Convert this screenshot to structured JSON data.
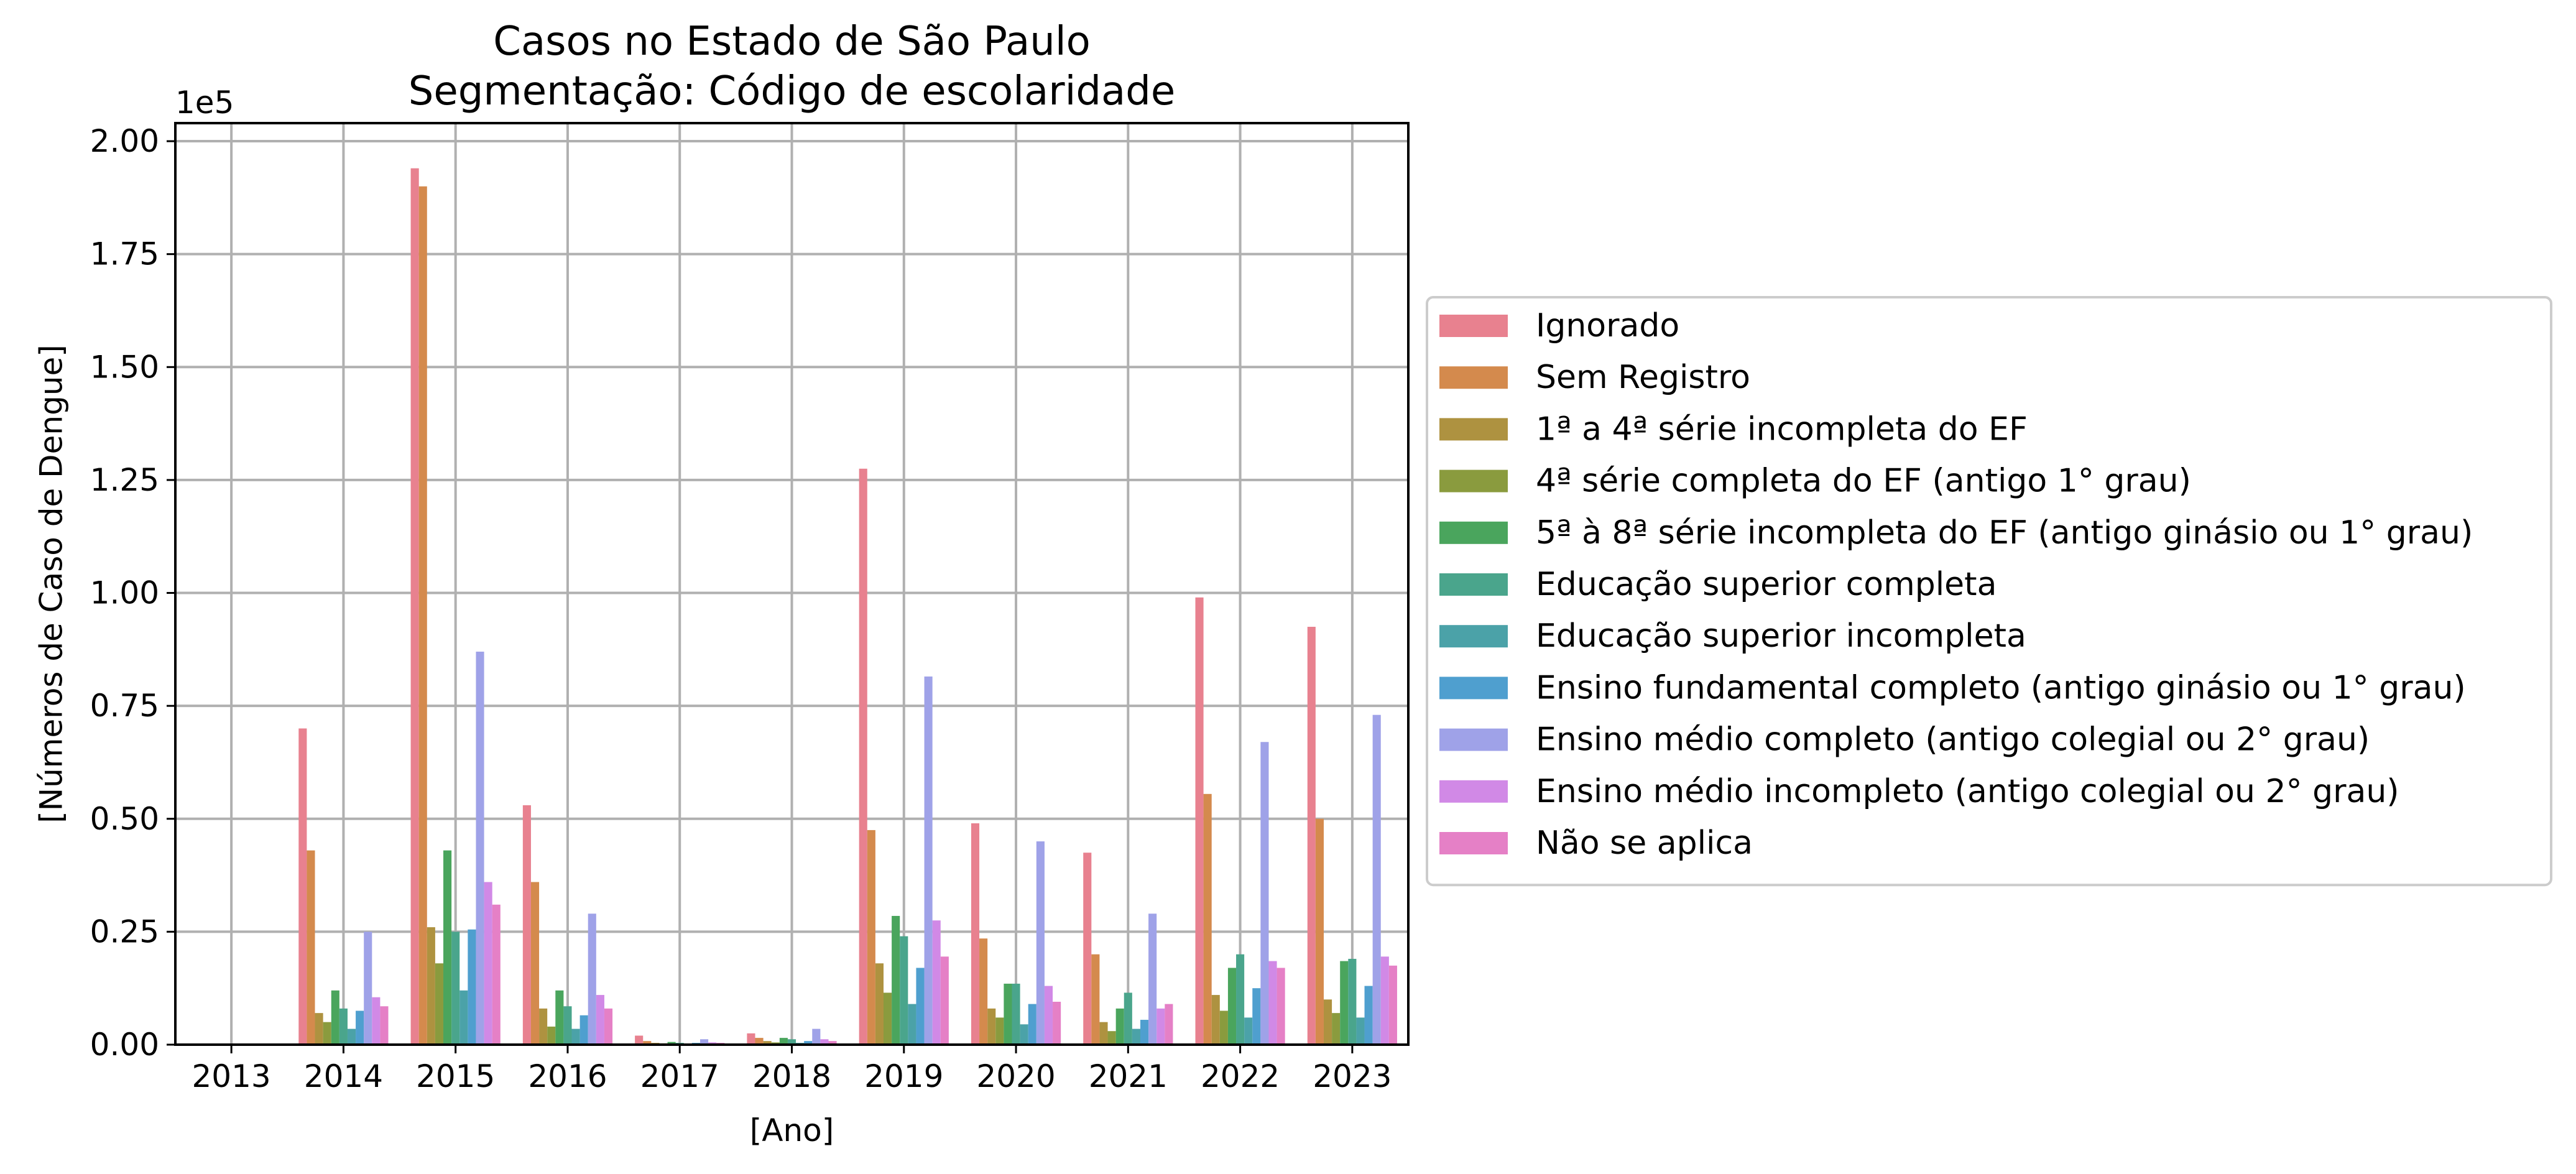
{
  "chart_data": {
    "type": "bar",
    "title": [
      "Casos no Estado de São Paulo",
      "Segmentação: Código de escolaridade"
    ],
    "xlabel": "[Ano]",
    "ylabel": "[Números de Caso de Dengue]",
    "y_offset_label": "1e5",
    "y_scale_factor": 100000,
    "ylim": [
      0,
      2.04
    ],
    "y_ticks": [
      "0.00",
      "0.25",
      "0.50",
      "0.75",
      "1.00",
      "1.25",
      "1.50",
      "1.75",
      "2.00"
    ],
    "grid": true,
    "legend_position": "right",
    "categories": [
      "2013",
      "2014",
      "2015",
      "2016",
      "2017",
      "2018",
      "2019",
      "2020",
      "2021",
      "2022",
      "2023"
    ],
    "series": [
      {
        "name": "Ignorado",
        "color": "#e8818f",
        "values": [
          0,
          0.7,
          1.94,
          0.53,
          0.02,
          0.025,
          1.275,
          0.49,
          0.425,
          0.99,
          0.925
        ]
      },
      {
        "name": "Sem Registro",
        "color": "#d48a4d",
        "values": [
          0,
          0.43,
          1.9,
          0.36,
          0.008,
          0.015,
          0.475,
          0.235,
          0.2,
          0.555,
          0.5
        ]
      },
      {
        "name": "1ª a 4ª série incompleta do EF",
        "color": "#ae9240",
        "values": [
          0,
          0.07,
          0.26,
          0.08,
          0.004,
          0.008,
          0.18,
          0.08,
          0.05,
          0.11,
          0.1
        ]
      },
      {
        "name": "4ª série completa do EF (antigo 1° grau)",
        "color": "#8a9b3e",
        "values": [
          0,
          0.05,
          0.18,
          0.04,
          0.003,
          0.005,
          0.115,
          0.06,
          0.03,
          0.075,
          0.07
        ]
      },
      {
        "name": "5ª à 8ª série incompleta do EF (antigo ginásio ou 1° grau)",
        "color": "#4aa55d",
        "values": [
          0,
          0.12,
          0.43,
          0.12,
          0.006,
          0.015,
          0.285,
          0.135,
          0.08,
          0.17,
          0.185
        ]
      },
      {
        "name": "Educação superior completa",
        "color": "#4aa58c",
        "values": [
          0,
          0.08,
          0.25,
          0.085,
          0.004,
          0.012,
          0.24,
          0.135,
          0.115,
          0.2,
          0.19
        ]
      },
      {
        "name": "Educação superior incompleta",
        "color": "#4ba2a8",
        "values": [
          0,
          0.035,
          0.12,
          0.035,
          0.002,
          0.004,
          0.09,
          0.045,
          0.035,
          0.06,
          0.06
        ]
      },
      {
        "name": "Ensino fundamental completo (antigo ginásio ou 1° grau)",
        "color": "#4f9fcf",
        "values": [
          0,
          0.075,
          0.255,
          0.065,
          0.004,
          0.008,
          0.17,
          0.09,
          0.055,
          0.125,
          0.13
        ]
      },
      {
        "name": "Ensino médio completo (antigo colegial ou 2° grau)",
        "color": "#9fa2e8",
        "values": [
          0,
          0.25,
          0.87,
          0.29,
          0.012,
          0.035,
          0.815,
          0.45,
          0.29,
          0.67,
          0.73
        ]
      },
      {
        "name": "Ensino médio incompleto (antigo colegial ou 2° grau)",
        "color": "#d189e6",
        "values": [
          0,
          0.105,
          0.36,
          0.11,
          0.005,
          0.012,
          0.275,
          0.13,
          0.08,
          0.185,
          0.195
        ]
      },
      {
        "name": "Não se aplica",
        "color": "#e580c6",
        "values": [
          0,
          0.085,
          0.31,
          0.08,
          0.004,
          0.008,
          0.195,
          0.095,
          0.09,
          0.17,
          0.175
        ]
      }
    ]
  }
}
